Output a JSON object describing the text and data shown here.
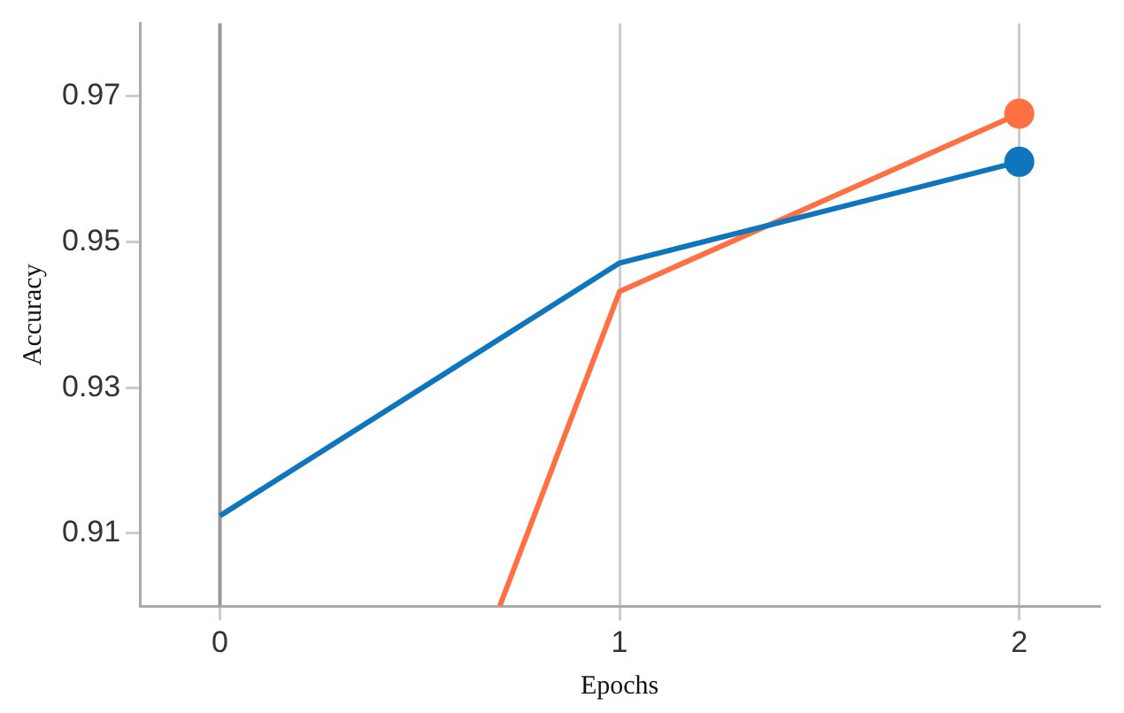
{
  "chart_data": {
    "type": "line",
    "xlabel": "Epochs",
    "ylabel": "Accuracy",
    "x": [
      0,
      1,
      2
    ],
    "series": [
      {
        "color": "#0f75bc",
        "values": [
          0.9124,
          0.9471,
          0.961
        ]
      },
      {
        "color": "#ff7043",
        "x": [
          0.7,
          1,
          2
        ],
        "values": [
          0.9,
          0.9432,
          0.9676
        ]
      },
      {
        "type": "scatter",
        "marker": "circle",
        "color": "#0f75bc",
        "x": [
          2
        ],
        "values": [
          0.961
        ]
      },
      {
        "type": "scatter",
        "marker": "circle",
        "color": "#ff7043",
        "x": [
          2
        ],
        "values": [
          0.9676
        ]
      }
    ],
    "xlim": [
      -0.2,
      2.2
    ],
    "ylim": [
      0.9,
      0.98
    ],
    "xticks": [
      0,
      1,
      2
    ],
    "yticks": [
      0.91,
      0.93,
      0.95,
      0.97
    ],
    "grid": "x",
    "legend": false,
    "line_style": "solid",
    "ref_lines": [
      {
        "axis": "x",
        "value": 0,
        "label": null,
        "color": "#999999"
      }
    ]
  }
}
